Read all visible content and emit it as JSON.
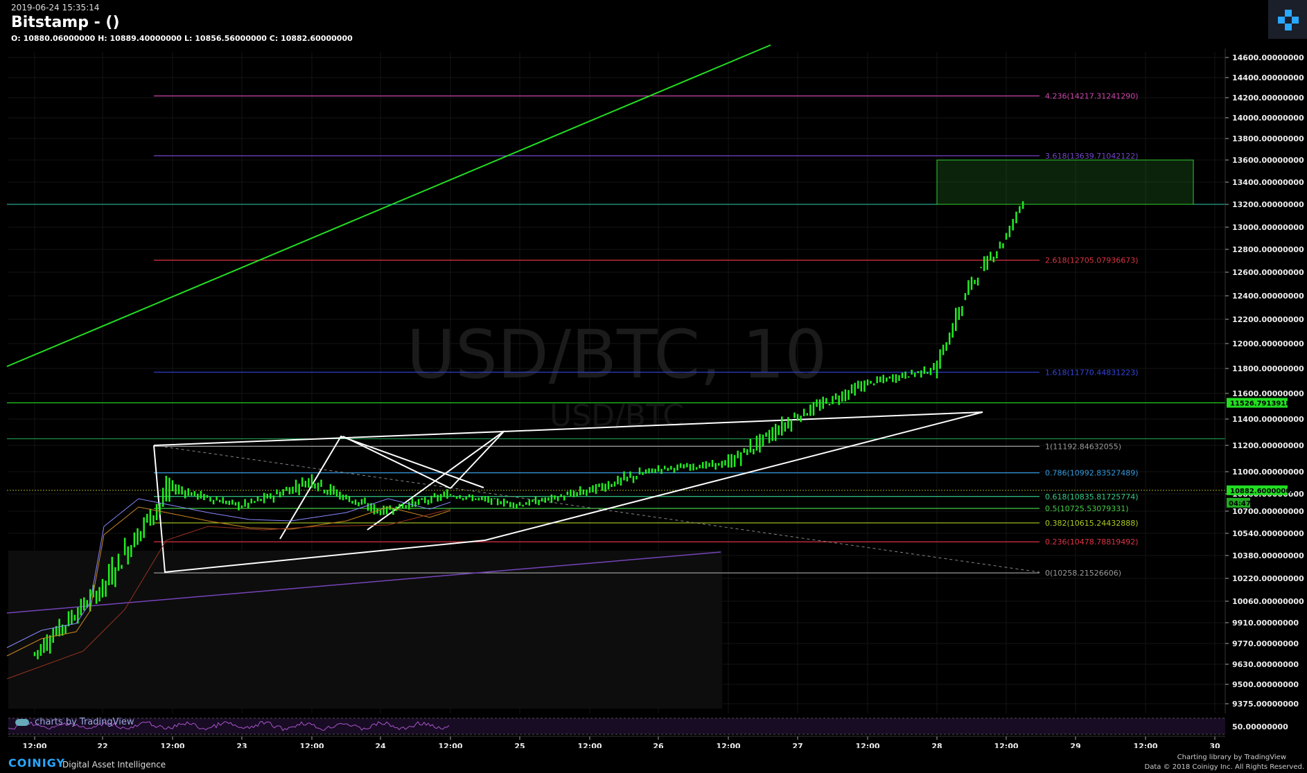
{
  "header": {
    "timestamp": "2019-06-24 15:35:14",
    "title": "Bitstamp -  ()",
    "ohlc": "O: 10880.06000000 H: 10889.40000000 L: 10856.56000000 C: 10882.60000000"
  },
  "watermark": {
    "line1": "USD/BTC, 10",
    "line2": "USD/BTC"
  },
  "tv_badge": "charts by TradingView",
  "footer": {
    "brand": "COINIGY",
    "tagline": "Digital Asset Intelligence",
    "credit_line1": "Charting library by   TradingView",
    "credit_line2": "Data © 2018   Coinigy Inc. All Rights Reserved."
  },
  "price_axis": {
    "ticks": [
      "14600.00000000",
      "14400.00000000",
      "14200.00000000",
      "14000.00000000",
      "13800.00000000",
      "13600.00000000",
      "13400.00000000",
      "13200.00000000",
      "13000.00000000",
      "12800.00000000",
      "12600.00000000",
      "12400.00000000",
      "12200.00000000",
      "12000.00000000",
      "11800.00000000",
      "11600.00000000",
      "11400.00000000",
      "11200.00000000",
      "11000.00000000",
      "10860.00000000",
      "10700.00000000",
      "10540.00000000",
      "10380.00000000",
      "10220.00000000",
      "10060.00000000",
      "9910.00000000",
      "9770.00000000",
      "9630.00000000",
      "9500.00000000",
      "9375.00000000"
    ],
    "markers": [
      {
        "label": "11526.79139182",
        "color": "#22dd22",
        "price": 11526.79
      },
      {
        "label": "10882.60000000",
        "color": "#22dd22",
        "price": 10882.6
      },
      {
        "label": "04:47",
        "color": "#22aa22",
        "price": 10830
      }
    ]
  },
  "rsi_axis": {
    "label": "50.00000000"
  },
  "time_axis": {
    "labels": [
      "12:00",
      "22",
      "12:00",
      "23",
      "12:00",
      "24",
      "12:00",
      "25",
      "12:00",
      "26",
      "12:00",
      "27",
      "12:00",
      "28",
      "12:00",
      "29",
      "12:00",
      "30"
    ]
  },
  "fib_levels": [
    {
      "label": "4.236(14217.31241290)",
      "color": "#cc44aa",
      "price": 14217.31
    },
    {
      "label": "3.618(13639.71042122)",
      "color": "#7744cc",
      "price": 13639.71
    },
    {
      "label": "2.618(12705.07936673)",
      "color": "#dd3344",
      "price": 12705.08
    },
    {
      "label": "1.618(11770.44831223)",
      "color": "#3344dd",
      "price": 11770.45
    },
    {
      "label": "1(11192.84632055)",
      "color": "#999999",
      "price": 11192.85
    },
    {
      "label": "0.786(10992.83527489)",
      "color": "#3399dd",
      "price": 10992.84
    },
    {
      "label": "0.618(10835.81725774)",
      "color": "#33cc88",
      "price": 10835.82
    },
    {
      "label": "0.5(10725.53079331)",
      "color": "#44cc44",
      "price": 10725.53
    },
    {
      "label": "0.382(10615.24432888)",
      "color": "#aacc22",
      "price": 10615.24
    },
    {
      "label": "0.236(10478.78819492)",
      "color": "#dd3344",
      "price": 10478.79
    },
    {
      "label": "0(10258.21526606)",
      "color": "#999999",
      "price": 10258.22
    }
  ],
  "chart_data": {
    "type": "ohlc",
    "title": "Bitstamp -  ()",
    "symbol_watermark": "USD/BTC, 10",
    "last": {
      "open": 10880.06,
      "high": 10889.4,
      "low": 10856.56,
      "close": 10882.6
    },
    "xlabel": "",
    "ylabel": "",
    "ylim": [
      9300,
      14700
    ],
    "x_ticks": [
      "12:00",
      "22",
      "12:00",
      "23",
      "12:00",
      "24",
      "12:00",
      "25",
      "12:00",
      "26",
      "12:00",
      "27",
      "12:00",
      "28",
      "12:00",
      "29",
      "12:00",
      "30"
    ],
    "price_series_sample": [
      {
        "t": "21 12:00",
        "close": 9700
      },
      {
        "t": "22 00:00",
        "close": 10150
      },
      {
        "t": "22 12:00",
        "close": 10900
      },
      {
        "t": "23 00:00",
        "close": 10750
      },
      {
        "t": "23 12:00",
        "close": 10950
      },
      {
        "t": "24 00:00",
        "close": 10700
      },
      {
        "t": "24 12:00",
        "close": 10850
      },
      {
        "t": "25 00:00",
        "close": 10760
      },
      {
        "t": "25 12:00",
        "close": 10880
      },
      {
        "t": "26 00:00",
        "close": 11020
      },
      {
        "t": "26 12:00",
        "close": 11060
      },
      {
        "t": "27 00:00",
        "close": 11420
      },
      {
        "t": "27 12:00",
        "close": 11680
      },
      {
        "t": "28 00:00",
        "close": 11800
      },
      {
        "t": "28 06:00",
        "close": 12500
      },
      {
        "t": "28 12:00",
        "close": 12900
      },
      {
        "t": "28 15:35",
        "close": 13300
      }
    ],
    "grid": true,
    "legend": "none"
  }
}
